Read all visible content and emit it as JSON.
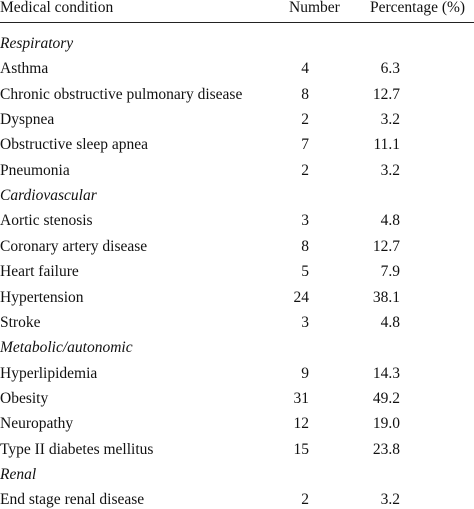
{
  "table": {
    "header": [
      "Medical condition",
      "Number",
      "Percentage (%)"
    ],
    "groups": [
      {
        "name": "Respiratory",
        "rows": [
          [
            "Asthma",
            "4",
            "6.3"
          ],
          [
            "Chronic obstructive pulmonary disease",
            "8",
            "12.7"
          ],
          [
            "Dyspnea",
            "2",
            "3.2"
          ],
          [
            "Obstructive sleep apnea",
            "7",
            "11.1"
          ],
          [
            "Pneumonia",
            "2",
            "3.2"
          ]
        ]
      },
      {
        "name": "Cardiovascular",
        "rows": [
          [
            "Aortic stenosis",
            "3",
            "4.8"
          ],
          [
            "Coronary artery disease",
            "8",
            "12.7"
          ],
          [
            "Heart failure",
            "5",
            "7.9"
          ],
          [
            "Hypertension",
            "24",
            "38.1"
          ],
          [
            "Stroke",
            "3",
            "4.8"
          ]
        ]
      },
      {
        "name": "Metabolic/autonomic",
        "rows": [
          [
            "Hyperlipidemia",
            "9",
            "14.3"
          ],
          [
            "Obesity",
            "31",
            "49.2"
          ],
          [
            "Neuropathy",
            "12",
            "19.0"
          ],
          [
            "Type II diabetes mellitus",
            "15",
            "23.8"
          ]
        ]
      },
      {
        "name": "Renal",
        "rows": [
          [
            "End stage renal disease",
            "2",
            "3.2"
          ]
        ]
      }
    ]
  }
}
